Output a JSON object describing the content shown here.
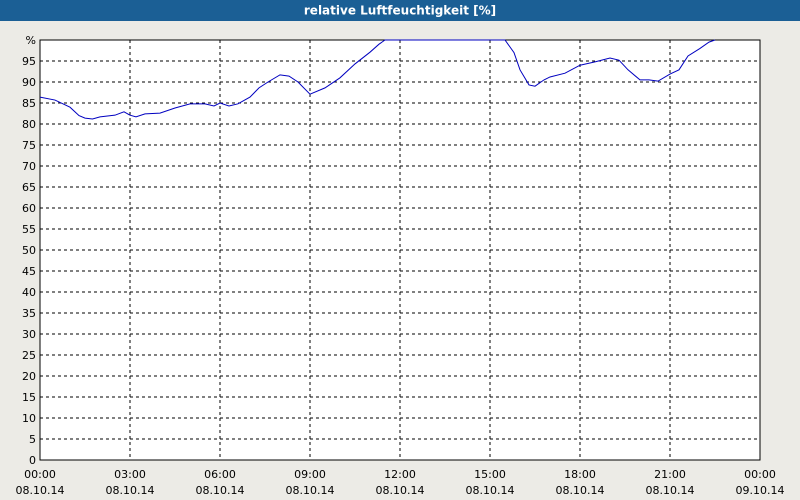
{
  "chart_data": {
    "type": "line",
    "title": "relative Luftfeuchtigkeit [%]",
    "x": [
      0,
      0.5,
      1.0,
      1.3,
      1.5,
      1.75,
      2.0,
      2.5,
      2.8,
      3.0,
      3.2,
      3.5,
      4.0,
      4.5,
      5.0,
      5.5,
      5.8,
      6.0,
      6.3,
      6.6,
      7.0,
      7.3,
      7.6,
      8.0,
      8.3,
      8.6,
      9.0,
      9.5,
      10.0,
      10.5,
      11.0,
      11.3,
      11.5,
      12.0,
      13.0,
      14.0,
      15.0,
      15.5,
      15.8,
      16.0,
      16.3,
      16.5,
      16.8,
      17.0,
      17.5,
      18.0,
      18.5,
      19.0,
      19.3,
      19.6,
      20.0,
      20.3,
      20.6,
      21.0,
      21.3,
      21.6,
      22.0,
      22.3,
      22.5
    ],
    "series": [
      {
        "name": "relative Luftfeuchtigkeit",
        "color": "#0000c0",
        "values": [
          86.4,
          85.7,
          84,
          82,
          81.4,
          81.2,
          81.7,
          82.1,
          82.9,
          82.1,
          81.7,
          82.4,
          82.6,
          83.8,
          84.8,
          84.8,
          84.3,
          85,
          84.3,
          84.8,
          86.4,
          88.6,
          90,
          91.7,
          91.4,
          90,
          87.1,
          88.6,
          91,
          94.3,
          97.1,
          99,
          100,
          100,
          100,
          100,
          100,
          100,
          97,
          92.9,
          89.3,
          89,
          90.5,
          91.2,
          92.1,
          94,
          94.8,
          95.7,
          95.2,
          92.9,
          90.5,
          90.5,
          90.2,
          91.9,
          92.9,
          96.2,
          98,
          99.5,
          100
        ]
      }
    ],
    "xlim": [
      0,
      24
    ],
    "xticks": [
      {
        "value": 0,
        "label": "00:00"
      },
      {
        "value": 3,
        "label": "03:00"
      },
      {
        "value": 6,
        "label": "06:00"
      },
      {
        "value": 9,
        "label": "09:00"
      },
      {
        "value": 12,
        "label": "12:00"
      },
      {
        "value": 15,
        "label": "15:00"
      },
      {
        "value": 18,
        "label": "18:00"
      },
      {
        "value": 21,
        "label": "21:00"
      },
      {
        "value": 24,
        "label": "00:00"
      }
    ],
    "xtick_dates": [
      "08.10.14",
      "08.10.14",
      "08.10.14",
      "08.10.14",
      "08.10.14",
      "08.10.14",
      "08.10.14",
      "08.10.14",
      "09.10.14"
    ],
    "ylim": [
      0,
      100
    ],
    "yticks": [
      0,
      5,
      10,
      15,
      20,
      25,
      30,
      35,
      40,
      45,
      50,
      55,
      60,
      65,
      70,
      75,
      80,
      85,
      90,
      95,
      {
        "value": 100,
        "label": "%"
      }
    ],
    "grid": true
  }
}
